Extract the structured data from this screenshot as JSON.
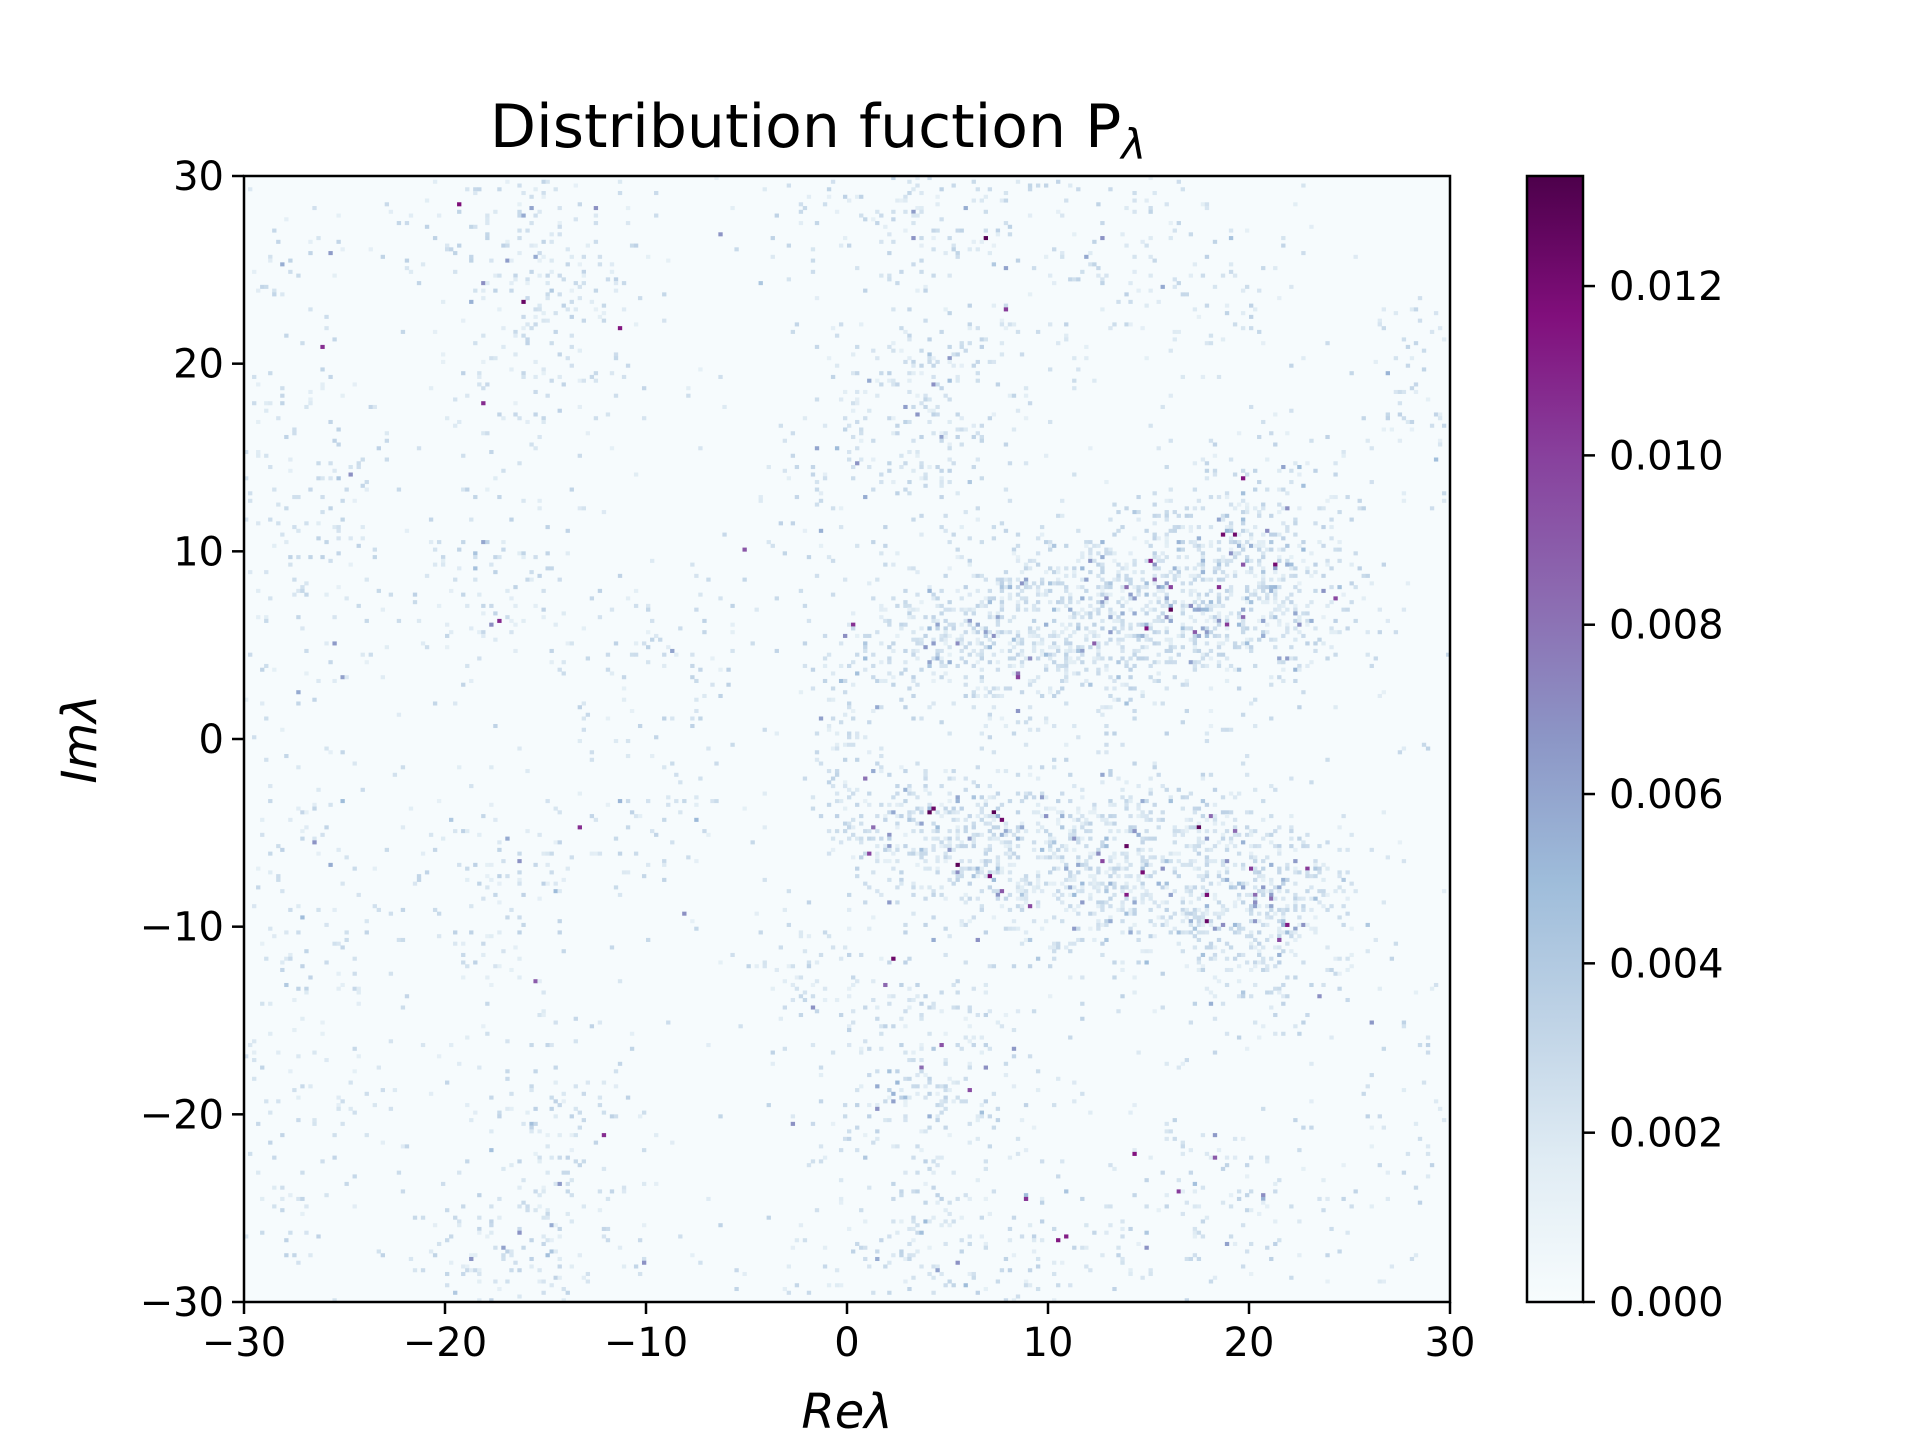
{
  "chart_data": {
    "type": "heatmap",
    "title": "Distribution fuction P",
    "title_subscript": "λ",
    "xlabel": "Reλ",
    "ylabel": "Imλ",
    "xlim": [
      -30,
      30
    ],
    "ylim": [
      -30,
      30
    ],
    "xticks": [
      -30,
      -20,
      -10,
      0,
      10,
      20,
      30
    ],
    "yticks": [
      -30,
      -20,
      -10,
      0,
      10,
      20,
      30
    ],
    "xtick_labels": [
      "−30",
      "−20",
      "−10",
      "0",
      "10",
      "20",
      "30"
    ],
    "ytick_labels": [
      "−30",
      "−20",
      "−10",
      "0",
      "10",
      "20",
      "30"
    ],
    "colorbar": {
      "range": [
        0.0,
        0.0133
      ],
      "ticks": [
        0.0,
        0.002,
        0.004,
        0.006,
        0.008,
        0.01,
        0.012
      ],
      "tick_labels": [
        "0.000",
        "0.002",
        "0.004",
        "0.006",
        "0.008",
        "0.010",
        "0.012"
      ],
      "colormap": "BuPu",
      "colors": [
        "#f7fcfd",
        "#e0ecf4",
        "#bfd3e6",
        "#9ebcda",
        "#8c96c6",
        "#8c6bb1",
        "#88419d",
        "#810f7c",
        "#4d004b"
      ]
    },
    "grid": false,
    "symmetric_about_real_axis": true,
    "density_clusters": [
      {
        "x": 20,
        "y": 9,
        "sx": 2.8,
        "sy": 3.0,
        "weight": 1.0
      },
      {
        "x": 15,
        "y": 7,
        "sx": 4.0,
        "sy": 2.5,
        "weight": 0.9
      },
      {
        "x": 9,
        "y": 6,
        "sx": 3.5,
        "sy": 2.5,
        "weight": 0.8
      },
      {
        "x": 4,
        "y": 5,
        "sx": 2.5,
        "sy": 1.8,
        "weight": 0.7
      },
      {
        "x": 4,
        "y": 18,
        "sx": 3.0,
        "sy": 4.0,
        "weight": 0.45
      },
      {
        "x": 4,
        "y": 28,
        "sx": 4.0,
        "sy": 2.0,
        "weight": 0.35
      },
      {
        "x": 17,
        "y": 25,
        "sx": 4.0,
        "sy": 3.0,
        "weight": 0.25
      },
      {
        "x": -16,
        "y": 27,
        "sx": 3.0,
        "sy": 2.5,
        "weight": 0.35
      },
      {
        "x": -15,
        "y": 21,
        "sx": 2.5,
        "sy": 3.0,
        "weight": 0.3
      },
      {
        "x": -17,
        "y": 8,
        "sx": 2.5,
        "sy": 3.0,
        "weight": 0.3
      },
      {
        "x": -9,
        "y": 4,
        "sx": 2.5,
        "sy": 2.5,
        "weight": 0.2
      },
      {
        "x": -27,
        "y": 12,
        "sx": 3.0,
        "sy": 6.0,
        "weight": 0.2
      },
      {
        "x": -28,
        "y": 25,
        "sx": 1.5,
        "sy": 1.5,
        "weight": 0.2
      },
      {
        "x": 0,
        "y": 1,
        "sx": 1.0,
        "sy": 3.0,
        "weight": 0.3
      },
      {
        "x": -2,
        "y": 12,
        "sx": 1.5,
        "sy": 3.0,
        "weight": 0.2
      },
      {
        "x": 28,
        "y": 19,
        "sx": 1.5,
        "sy": 3.0,
        "weight": 0.2
      }
    ]
  }
}
